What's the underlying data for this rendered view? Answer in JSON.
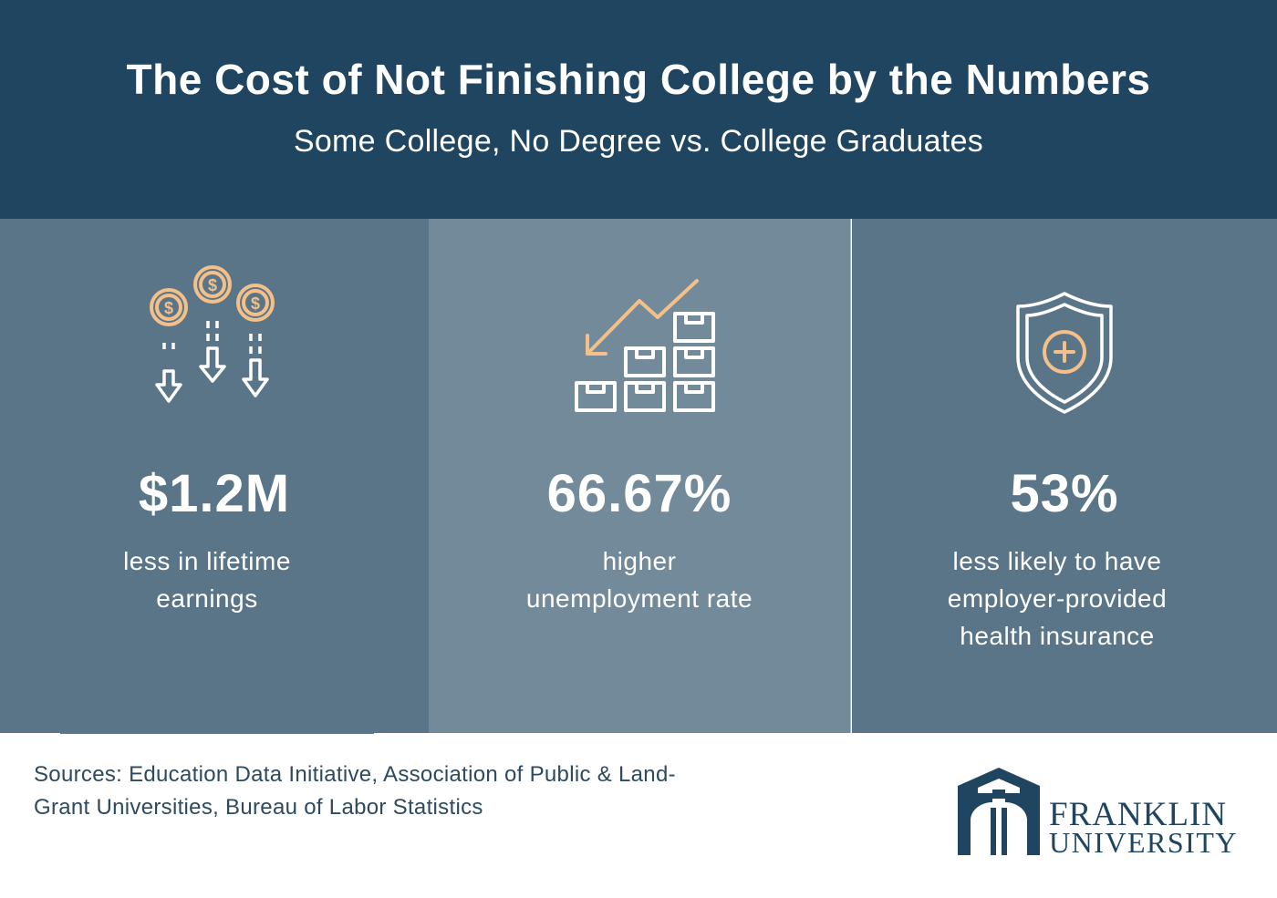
{
  "header": {
    "title": "The Cost of Not Finishing College by the Numbers",
    "subtitle": "Some College, No Degree vs. College Graduates"
  },
  "stats": [
    {
      "value": "$1.2M",
      "description": "less in lifetime earnings",
      "icon": "falling-coins-icon"
    },
    {
      "value": "66.67%",
      "description": "higher unemployment rate",
      "icon": "declining-chart-boxes-icon"
    },
    {
      "value": "53%",
      "description": "less likely to have employer-provided health insurance",
      "icon": "health-shield-icon"
    }
  ],
  "sources": "Sources: Education Data Initiative, Association of Public & Land-Grant Universities, Bureau of Labor Statistics",
  "logo": {
    "line1": "FRANKLIN",
    "line2": "UNIVERSITY"
  },
  "colors": {
    "header_bg": "#1f4560",
    "panel_dark": "#5a7587",
    "panel_light": "#728a99",
    "accent_orange": "#f3c08a",
    "text_dark": "#2d4a60"
  }
}
